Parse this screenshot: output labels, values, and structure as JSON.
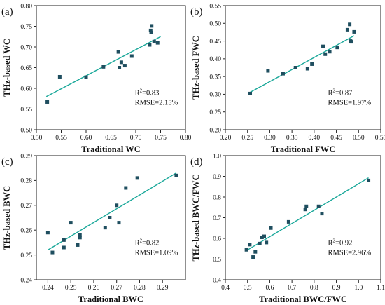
{
  "chart_data": [
    {
      "type": "scatter",
      "panel_label": "(a)",
      "xlabel": "Traditional WC",
      "ylabel": "THz-based WC",
      "xlim": [
        0.5,
        0.8
      ],
      "ylim": [
        0.5,
        0.8
      ],
      "xticks": [
        "0.50",
        "0.55",
        "0.60",
        "0.65",
        "0.70",
        "0.75",
        "0.80"
      ],
      "yticks": [
        "0.50",
        "0.55",
        "0.60",
        "0.65",
        "0.70",
        "0.75",
        "0.80"
      ],
      "x": [
        0.522,
        0.547,
        0.6,
        0.635,
        0.665,
        0.667,
        0.671,
        0.678,
        0.692,
        0.728,
        0.73,
        0.731,
        0.732,
        0.737,
        0.744
      ],
      "y": [
        0.567,
        0.628,
        0.627,
        0.652,
        0.688,
        0.65,
        0.663,
        0.655,
        0.678,
        0.705,
        0.74,
        0.735,
        0.751,
        0.713,
        0.71
      ],
      "fit": [
        [
          0.52,
          0.58
        ],
        [
          0.75,
          0.725
        ]
      ],
      "r2_label": "R",
      "r2_sup": "2",
      "r2_value": "=0.83",
      "rmse": "RMSE=2.15%",
      "grid": false,
      "marker_color": "#1f4e5f",
      "line_color": "#1aa89a"
    },
    {
      "type": "scatter",
      "panel_label": "(b)",
      "xlabel": "Traditional FWC",
      "ylabel": "THz-based FWC",
      "xlim": [
        0.2,
        0.55
      ],
      "ylim": [
        0.2,
        0.55
      ],
      "xticks": [
        "0.20",
        "0.25",
        "0.30",
        "0.35",
        "0.40",
        "0.45",
        "0.50",
        "0.55"
      ],
      "yticks": [
        "0.20",
        "0.25",
        "0.30",
        "0.35",
        "0.40",
        "0.45",
        "0.50",
        "0.55"
      ],
      "x": [
        0.256,
        0.296,
        0.33,
        0.358,
        0.385,
        0.395,
        0.42,
        0.425,
        0.435,
        0.452,
        0.475,
        0.48,
        0.482,
        0.484,
        0.49
      ],
      "y": [
        0.302,
        0.366,
        0.358,
        0.375,
        0.372,
        0.385,
        0.435,
        0.413,
        0.42,
        0.432,
        0.482,
        0.497,
        0.45,
        0.448,
        0.476
      ],
      "fit": [
        [
          0.255,
          0.305
        ],
        [
          0.49,
          0.465
        ]
      ],
      "r2_label": "R",
      "r2_sup": "2",
      "r2_value": "=0.87",
      "rmse": "RMSE=1.97%",
      "grid": false,
      "marker_color": "#1f4e5f",
      "line_color": "#1aa89a"
    },
    {
      "type": "scatter",
      "panel_label": "(c)",
      "xlabel": "Traditional BWC",
      "ylabel": "THz-based BWC",
      "xlim": [
        0.235,
        0.3
      ],
      "ylim": [
        0.24,
        0.29
      ],
      "xticks": [
        "0.24",
        "0.25",
        "0.26",
        "0.27",
        "0.28",
        "0.29"
      ],
      "yticks": [
        "0.24",
        "0.25",
        "0.26",
        "0.27",
        "0.28",
        "0.29"
      ],
      "x": [
        0.24,
        0.242,
        0.247,
        0.247,
        0.25,
        0.253,
        0.254,
        0.254,
        0.265,
        0.267,
        0.27,
        0.271,
        0.274,
        0.279,
        0.296
      ],
      "y": [
        0.259,
        0.251,
        0.253,
        0.256,
        0.263,
        0.254,
        0.258,
        0.257,
        0.261,
        0.265,
        0.27,
        0.263,
        0.277,
        0.281,
        0.282
      ],
      "fit": [
        [
          0.24,
          0.252
        ],
        [
          0.296,
          0.283
        ]
      ],
      "r2_label": "R",
      "r2_sup": "2",
      "r2_value": "=0.82",
      "rmse": "RMSE=1.09%",
      "grid": false,
      "marker_color": "#1f4e5f",
      "line_color": "#1aa89a"
    },
    {
      "type": "scatter",
      "panel_label": "(d)",
      "xlabel": "Traditional BWC/FWC",
      "ylabel": "THz-based BWC/FWC",
      "xlim": [
        0.4,
        1.1
      ],
      "ylim": [
        0.4,
        1.0
      ],
      "xticks": [
        "0.4",
        "0.5",
        "0.6",
        "0.7",
        "0.8",
        "0.9",
        "1.0",
        "1.1"
      ],
      "yticks": [
        "0.4",
        "0.5",
        "0.6",
        "0.7",
        "0.8",
        "0.9",
        "1.0"
      ],
      "x": [
        0.495,
        0.51,
        0.525,
        0.535,
        0.555,
        0.565,
        0.575,
        0.585,
        0.605,
        0.685,
        0.76,
        0.765,
        0.82,
        0.835,
        1.045
      ],
      "y": [
        0.545,
        0.57,
        0.51,
        0.535,
        0.575,
        0.605,
        0.61,
        0.58,
        0.65,
        0.68,
        0.74,
        0.755,
        0.755,
        0.72,
        0.88
      ],
      "fit": [
        [
          0.49,
          0.538
        ],
        [
          1.045,
          0.893
        ]
      ],
      "r2_label": "R",
      "r2_sup": "2",
      "r2_value": "=0.92",
      "rmse": "RMSE=2.96%",
      "grid": false,
      "marker_color": "#1f4e5f",
      "line_color": "#1aa89a"
    }
  ]
}
